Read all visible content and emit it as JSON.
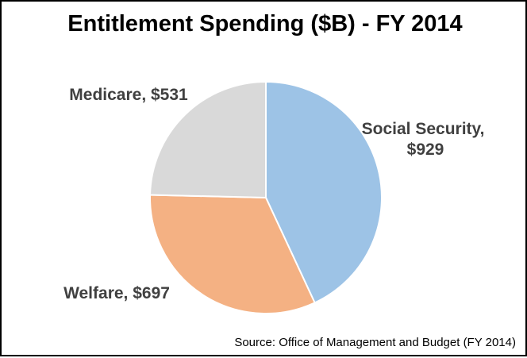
{
  "chart_data": {
    "type": "pie",
    "title": "Entitlement Spending ($B) - FY 2014",
    "slices": [
      {
        "label": "Social Security",
        "value": 929,
        "value_text": "$929",
        "color": "#9dc3e6"
      },
      {
        "label": "Welfare",
        "value": 697,
        "value_text": "$697",
        "color": "#f4b183"
      },
      {
        "label": "Medicare",
        "value": 531,
        "value_text": "$531",
        "color": "#d9d9d9"
      }
    ],
    "start_angle": "12 o'clock",
    "direction": "clockwise",
    "legend": "none",
    "source": "Source: Office of Management and Budget (FY 2014)"
  }
}
